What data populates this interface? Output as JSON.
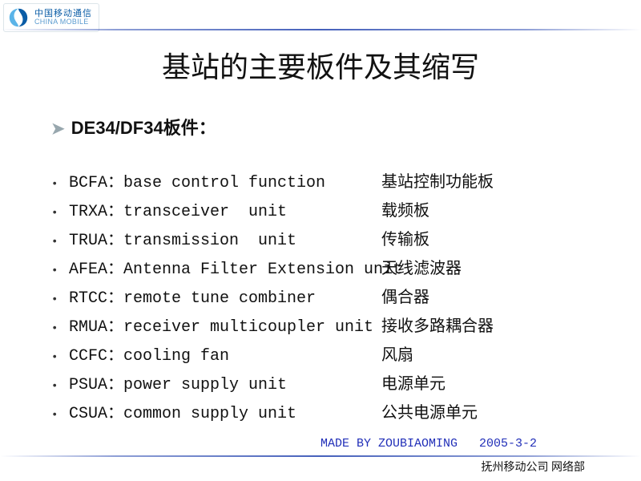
{
  "logo": {
    "cn": "中国移动通信",
    "en": "CHINA MOBILE",
    "mark_color_outer": "#0a5ca6",
    "mark_color_inner": "#5bb4e8"
  },
  "title": "基站的主要板件及其缩写",
  "subheading": "DE34/DF34板件：",
  "items": [
    {
      "eng": "BCFA：base control function",
      "cn": "基站控制功能板"
    },
    {
      "eng": "TRXA：transceiver  unit",
      "cn": "载频板"
    },
    {
      "eng": "TRUA：transmission  unit",
      "cn": "传输板"
    },
    {
      "eng": "AFEA：Antenna Filter Extension unit",
      "cn": "天线滤波器"
    },
    {
      "eng": "RTCC：remote tune combiner",
      "cn": "偶合器"
    },
    {
      "eng": "RMUA：receiver multicoupler unit",
      "cn": "接收多路耦合器"
    },
    {
      "eng": "CCFC：cooling fan",
      "cn": "风扇"
    },
    {
      "eng": "PSUA：power supply unit",
      "cn": "电源单元"
    },
    {
      "eng": "CSUA：common supply unit",
      "cn": "公共电源单元"
    }
  ],
  "footer": {
    "author": "MADE BY ZOUBIAOMING",
    "date": "2005-3-2",
    "org": "抚州移动公司   网络部"
  },
  "colors": {
    "line": "#3250b4",
    "author_text": "#212fb8",
    "body_text": "#111111",
    "arrow": "#98a7ae",
    "background": "#ffffff"
  },
  "typography": {
    "title_fontsize": 36,
    "subheading_fontsize": 22,
    "body_fontsize": 20,
    "footer_author_fontsize": 15,
    "footer_org_fontsize": 14
  }
}
